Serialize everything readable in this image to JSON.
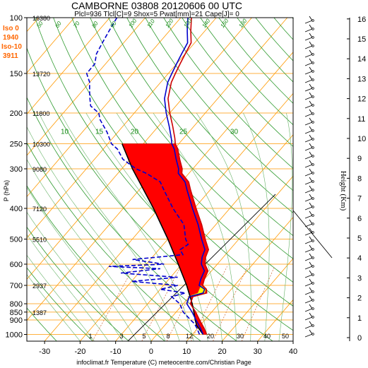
{
  "chart_data": {
    "type": "line",
    "chart_kind": "Skew-T log-P sounding",
    "title": "CAMBORNE 03808 20120606 00 UTC",
    "subtitle": "Plcl=936 Tlcl[C]=9 Shox=5 Pwat[mm]=21 Cape[J]= 0",
    "xlabel": "infoclimat.fr Temperature (C) meteocentre.com/Christian Page",
    "ylabel": "P (hPa)",
    "y2label": "Height (Km)",
    "xlim": [
      -35,
      40
    ],
    "ylim": [
      1050,
      100
    ],
    "y_scale": "log",
    "grid": true,
    "x_ticks": [
      -30,
      -20,
      -10,
      0,
      10,
      20,
      30,
      40
    ],
    "pressure_ticks": [
      100,
      150,
      200,
      250,
      300,
      400,
      500,
      600,
      700,
      800,
      850,
      900,
      1000
    ],
    "height_ticks": [
      0,
      1,
      2,
      3,
      4,
      5,
      6,
      7,
      8,
      9,
      10,
      11,
      12,
      13,
      14,
      15,
      16
    ],
    "height_labels_m": [
      {
        "p": 100,
        "label": "16380"
      },
      {
        "p": 150,
        "label": "13720"
      },
      {
        "p": 200,
        "label": "11800"
      },
      {
        "p": 250,
        "label": "10300"
      },
      {
        "p": 300,
        "label": "9080"
      },
      {
        "p": 400,
        "label": "7120"
      },
      {
        "p": 500,
        "label": "5510"
      },
      {
        "p": 700,
        "label": "2937"
      },
      {
        "p": 850,
        "label": "1387"
      }
    ],
    "levels_info": [
      {
        "name": "Iso 0",
        "value": "1940"
      },
      {
        "name": "Iso-10",
        "value": "3911"
      }
    ],
    "mixing_ratio_labels": [
      "1",
      "3",
      "5",
      "8",
      "12",
      "20",
      "30",
      "40",
      "50"
    ],
    "skewed_iso_labels": [
      {
        "value": "10",
        "p": 250
      },
      {
        "value": "15",
        "p": 250
      },
      {
        "value": "20",
        "p": 250
      },
      {
        "value": "25",
        "p": 250
      },
      {
        "value": "30",
        "p": 250
      }
    ],
    "top_iso_labels": [
      "50",
      "60",
      "70",
      "80",
      "90",
      "100",
      "110",
      "120",
      "130",
      "140",
      "150",
      "160"
    ],
    "series": [
      {
        "name": "Temperature",
        "color": "#0000cc",
        "points": [
          [
            1000,
            13
          ],
          [
            960,
            11
          ],
          [
            925,
            9
          ],
          [
            900,
            7.5
          ],
          [
            850,
            4.5
          ],
          [
            800,
            1
          ],
          [
            760,
            0
          ],
          [
            740,
            3
          ],
          [
            720,
            2.5
          ],
          [
            700,
            0
          ],
          [
            670,
            -1
          ],
          [
            630,
            -2
          ],
          [
            600,
            -4.5
          ],
          [
            570,
            -6
          ],
          [
            540,
            -7
          ],
          [
            500,
            -10.5
          ],
          [
            450,
            -15
          ],
          [
            400,
            -20.5
          ],
          [
            350,
            -26.5
          ],
          [
            330,
            -29
          ],
          [
            310,
            -33
          ],
          [
            300,
            -34
          ],
          [
            280,
            -37
          ],
          [
            260,
            -40
          ],
          [
            250,
            -42
          ],
          [
            240,
            -43.5
          ],
          [
            220,
            -47
          ],
          [
            200,
            -51
          ],
          [
            180,
            -55
          ],
          [
            160,
            -58
          ],
          [
            150,
            -59
          ],
          [
            140,
            -60
          ],
          [
            130,
            -61
          ],
          [
            120,
            -62
          ],
          [
            110,
            -65
          ],
          [
            100,
            -68
          ]
        ]
      },
      {
        "name": "Dew point",
        "color": "#0000cc",
        "dash": true,
        "points": [
          [
            1000,
            12
          ],
          [
            960,
            10
          ],
          [
            925,
            8
          ],
          [
            900,
            6
          ],
          [
            850,
            2
          ],
          [
            800,
            -1
          ],
          [
            760,
            -5
          ],
          [
            740,
            -2
          ],
          [
            720,
            -10
          ],
          [
            700,
            -6
          ],
          [
            680,
            -20
          ],
          [
            660,
            -8
          ],
          [
            640,
            -25
          ],
          [
            620,
            -15
          ],
          [
            610,
            -30
          ],
          [
            600,
            -15
          ],
          [
            580,
            -25
          ],
          [
            560,
            -12
          ],
          [
            540,
            -14
          ],
          [
            520,
            -13
          ],
          [
            500,
            -15
          ],
          [
            450,
            -19
          ],
          [
            400,
            -26
          ],
          [
            350,
            -33
          ],
          [
            330,
            -36
          ],
          [
            310,
            -42
          ],
          [
            300,
            -46
          ],
          [
            280,
            -52
          ],
          [
            260,
            -56
          ],
          [
            250,
            -59
          ],
          [
            230,
            -63
          ],
          [
            210,
            -68
          ],
          [
            200,
            -70
          ],
          [
            190,
            -74
          ],
          [
            180,
            -76
          ],
          [
            170,
            -78
          ],
          [
            160,
            -80
          ],
          [
            150,
            -83
          ],
          [
            140,
            -83
          ],
          [
            130,
            -85
          ],
          [
            120,
            -86
          ],
          [
            110,
            -87
          ],
          [
            100,
            -88
          ]
        ]
      },
      {
        "name": "Virtual temperature",
        "color": "#cc0000",
        "points": [
          [
            1000,
            14
          ],
          [
            960,
            12
          ],
          [
            925,
            10
          ],
          [
            900,
            8.5
          ],
          [
            850,
            5.5
          ],
          [
            800,
            2
          ],
          [
            760,
            1
          ],
          [
            740,
            4
          ],
          [
            720,
            3
          ],
          [
            700,
            1
          ],
          [
            670,
            0
          ],
          [
            630,
            -1
          ],
          [
            600,
            -3.5
          ],
          [
            570,
            -5
          ],
          [
            540,
            -6
          ],
          [
            500,
            -9.5
          ],
          [
            450,
            -14
          ],
          [
            400,
            -19.5
          ],
          [
            350,
            -25.5
          ],
          [
            330,
            -28
          ],
          [
            310,
            -32
          ],
          [
            300,
            -33
          ],
          [
            280,
            -36
          ],
          [
            260,
            -39
          ],
          [
            250,
            -41
          ],
          [
            240,
            -42.5
          ],
          [
            220,
            -46
          ],
          [
            200,
            -50
          ],
          [
            180,
            -54
          ],
          [
            160,
            -57
          ],
          [
            150,
            -58
          ],
          [
            140,
            -59
          ],
          [
            130,
            -60
          ],
          [
            120,
            -61
          ],
          [
            110,
            -64
          ],
          [
            100,
            -67
          ]
        ]
      },
      {
        "name": "Parcel",
        "color": "#000000",
        "points": [
          [
            1000,
            13
          ],
          [
            936,
            9
          ],
          [
            900,
            7.3
          ],
          [
            850,
            5
          ],
          [
            800,
            2.5
          ],
          [
            700,
            -3.5
          ],
          [
            600,
            -11
          ],
          [
            500,
            -20
          ],
          [
            400,
            -31.5
          ],
          [
            300,
            -47
          ],
          [
            250,
            -56
          ]
        ]
      }
    ],
    "cin_region_color": "#ff0000",
    "cape_region_color": "#ffff00",
    "wind_barbs_present": true
  }
}
